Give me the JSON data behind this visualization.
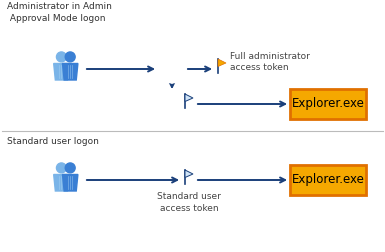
{
  "bg_color": "#ffffff",
  "arrow_color": "#1a3f7a",
  "explorer_fill": "#f5a800",
  "explorer_edge": "#e07000",
  "explorer_text": "Explorer.exe",
  "section1_label": "Administrator in Admin\n Approval Mode logon",
  "section2_label": "Standard user logon",
  "full_token_label": "Full administrator\naccess token",
  "standard_token_label": "Standard user\naccess token",
  "font_size_small": 6.5,
  "font_size_explorer": 8.5,
  "people_color_dark": "#1a4fa0",
  "people_color_mid": "#3a7fd4",
  "people_color_light": "#7ab4e8"
}
